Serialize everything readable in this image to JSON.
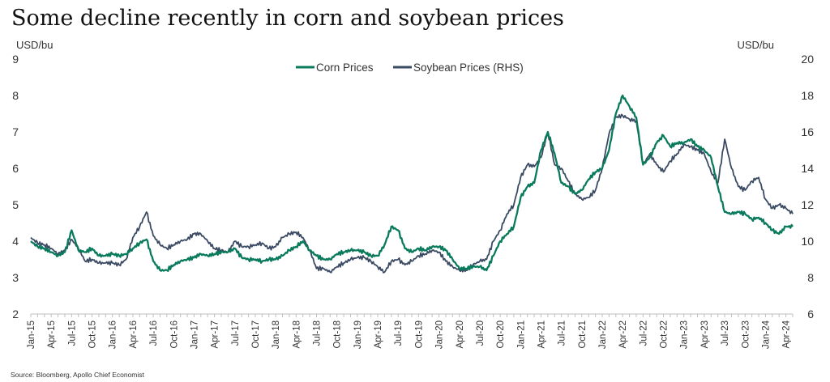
{
  "chart_data": {
    "type": "line",
    "title": "Some decline recently in corn and soybean prices",
    "y_left": {
      "unit": "USD/bu",
      "range": [
        2,
        9
      ],
      "ticks": [
        "2",
        "3",
        "4",
        "5",
        "6",
        "7",
        "8",
        "9"
      ]
    },
    "y_right": {
      "unit": "USD/bu",
      "range": [
        6,
        20
      ],
      "ticks": [
        "6",
        "8",
        "10",
        "12",
        "14",
        "16",
        "18",
        "20"
      ]
    },
    "x_tick_labels": [
      "Jan-15",
      "Apr-15",
      "Jul-15",
      "Oct-15",
      "Jan-16",
      "Apr-16",
      "Jul-16",
      "Oct-16",
      "Jan-17",
      "Apr-17",
      "Jul-17",
      "Oct-17",
      "Jan-18",
      "Apr-18",
      "Jul-18",
      "Oct-18",
      "Jan-19",
      "Apr-19",
      "Jul-19",
      "Oct-19",
      "Jan-20",
      "Apr-20",
      "Jul-20",
      "Oct-20",
      "Jan-21",
      "Apr-21",
      "Jul-21",
      "Oct-21",
      "Jan-22",
      "Apr-22",
      "Jul-22",
      "Oct-22",
      "Jan-23",
      "Apr-23",
      "Jul-23",
      "Oct-23",
      "Jan-24",
      "Apr-24"
    ],
    "x_range": [
      "2015-01",
      "2024-05"
    ],
    "grid": false,
    "legend_position": "top-center",
    "series": [
      {
        "name": "Corn Prices",
        "axis": "left",
        "color": "#0a7a5c",
        "x": [
          "2015-01",
          "2015-02",
          "2015-03",
          "2015-04",
          "2015-05",
          "2015-06",
          "2015-07",
          "2015-08",
          "2015-09",
          "2015-10",
          "2015-11",
          "2015-12",
          "2016-01",
          "2016-02",
          "2016-03",
          "2016-04",
          "2016-05",
          "2016-06",
          "2016-07",
          "2016-08",
          "2016-09",
          "2016-10",
          "2016-11",
          "2016-12",
          "2017-01",
          "2017-02",
          "2017-03",
          "2017-04",
          "2017-05",
          "2017-06",
          "2017-07",
          "2017-08",
          "2017-09",
          "2017-10",
          "2017-11",
          "2017-12",
          "2018-01",
          "2018-02",
          "2018-03",
          "2018-04",
          "2018-05",
          "2018-06",
          "2018-07",
          "2018-08",
          "2018-09",
          "2018-10",
          "2018-11",
          "2018-12",
          "2019-01",
          "2019-02",
          "2019-03",
          "2019-04",
          "2019-05",
          "2019-06",
          "2019-07",
          "2019-08",
          "2019-09",
          "2019-10",
          "2019-11",
          "2019-12",
          "2020-01",
          "2020-02",
          "2020-03",
          "2020-04",
          "2020-05",
          "2020-06",
          "2020-07",
          "2020-08",
          "2020-09",
          "2020-10",
          "2020-11",
          "2020-12",
          "2021-01",
          "2021-02",
          "2021-03",
          "2021-04",
          "2021-05",
          "2021-06",
          "2021-07",
          "2021-08",
          "2021-09",
          "2021-10",
          "2021-11",
          "2021-12",
          "2022-01",
          "2022-02",
          "2022-03",
          "2022-04",
          "2022-05",
          "2022-06",
          "2022-07",
          "2022-08",
          "2022-09",
          "2022-10",
          "2022-11",
          "2022-12",
          "2023-01",
          "2023-02",
          "2023-03",
          "2023-04",
          "2023-05",
          "2023-06",
          "2023-07",
          "2023-08",
          "2023-09",
          "2023-10",
          "2023-11",
          "2023-12",
          "2024-01",
          "2024-02",
          "2024-03",
          "2024-04",
          "2024-05"
        ],
        "values": [
          4.0,
          3.85,
          3.8,
          3.7,
          3.6,
          3.7,
          4.3,
          3.75,
          3.7,
          3.8,
          3.6,
          3.6,
          3.65,
          3.6,
          3.65,
          3.8,
          3.95,
          4.05,
          3.45,
          3.2,
          3.2,
          3.35,
          3.45,
          3.5,
          3.55,
          3.65,
          3.6,
          3.65,
          3.7,
          3.7,
          3.8,
          3.55,
          3.5,
          3.5,
          3.45,
          3.5,
          3.5,
          3.6,
          3.75,
          3.85,
          4.0,
          3.75,
          3.6,
          3.5,
          3.5,
          3.65,
          3.7,
          3.75,
          3.75,
          3.7,
          3.6,
          3.6,
          3.9,
          4.4,
          4.3,
          3.8,
          3.7,
          3.8,
          3.75,
          3.85,
          3.85,
          3.75,
          3.5,
          3.25,
          3.25,
          3.3,
          3.3,
          3.2,
          3.6,
          4.0,
          4.2,
          4.4,
          5.2,
          5.5,
          5.6,
          6.5,
          7.0,
          6.4,
          5.6,
          5.5,
          5.3,
          5.4,
          5.7,
          5.9,
          6.0,
          6.5,
          7.5,
          8.0,
          7.7,
          7.4,
          6.1,
          6.3,
          6.7,
          6.9,
          6.6,
          6.7,
          6.7,
          6.8,
          6.6,
          6.5,
          6.3,
          5.5,
          4.8,
          4.75,
          4.8,
          4.75,
          4.6,
          4.65,
          4.5,
          4.3,
          4.2,
          4.4,
          4.4
        ]
      },
      {
        "name": "Soybean Prices (RHS)",
        "axis": "right",
        "color": "#3b4a63",
        "x": [
          "2015-01",
          "2015-02",
          "2015-03",
          "2015-04",
          "2015-05",
          "2015-06",
          "2015-07",
          "2015-08",
          "2015-09",
          "2015-10",
          "2015-11",
          "2015-12",
          "2016-01",
          "2016-02",
          "2016-03",
          "2016-04",
          "2016-05",
          "2016-06",
          "2016-07",
          "2016-08",
          "2016-09",
          "2016-10",
          "2016-11",
          "2016-12",
          "2017-01",
          "2017-02",
          "2017-03",
          "2017-04",
          "2017-05",
          "2017-06",
          "2017-07",
          "2017-08",
          "2017-09",
          "2017-10",
          "2017-11",
          "2017-12",
          "2018-01",
          "2018-02",
          "2018-03",
          "2018-04",
          "2018-05",
          "2018-06",
          "2018-07",
          "2018-08",
          "2018-09",
          "2018-10",
          "2018-11",
          "2018-12",
          "2019-01",
          "2019-02",
          "2019-03",
          "2019-04",
          "2019-05",
          "2019-06",
          "2019-07",
          "2019-08",
          "2019-09",
          "2019-10",
          "2019-11",
          "2019-12",
          "2020-01",
          "2020-02",
          "2020-03",
          "2020-04",
          "2020-05",
          "2020-06",
          "2020-07",
          "2020-08",
          "2020-09",
          "2020-10",
          "2020-11",
          "2020-12",
          "2021-01",
          "2021-02",
          "2021-03",
          "2021-04",
          "2021-05",
          "2021-06",
          "2021-07",
          "2021-08",
          "2021-09",
          "2021-10",
          "2021-11",
          "2021-12",
          "2022-01",
          "2022-02",
          "2022-03",
          "2022-04",
          "2022-05",
          "2022-06",
          "2022-07",
          "2022-08",
          "2022-09",
          "2022-10",
          "2022-11",
          "2022-12",
          "2023-01",
          "2023-02",
          "2023-03",
          "2023-04",
          "2023-05",
          "2023-06",
          "2023-07",
          "2023-08",
          "2023-09",
          "2023-10",
          "2023-11",
          "2023-12",
          "2024-01",
          "2024-02",
          "2024-03",
          "2024-04",
          "2024-05"
        ],
        "values": [
          10.2,
          9.9,
          9.8,
          9.6,
          9.3,
          9.5,
          10.1,
          9.6,
          8.9,
          9.0,
          8.8,
          8.8,
          8.8,
          8.7,
          9.0,
          10.2,
          10.8,
          11.6,
          10.3,
          9.8,
          9.6,
          9.8,
          10.0,
          10.1,
          10.4,
          10.4,
          10.0,
          9.6,
          9.5,
          9.4,
          10.0,
          9.7,
          9.7,
          9.8,
          9.9,
          9.6,
          9.7,
          10.2,
          10.4,
          10.5,
          10.2,
          9.5,
          8.5,
          8.5,
          8.3,
          8.6,
          8.8,
          9.0,
          9.1,
          9.1,
          8.9,
          8.6,
          8.3,
          8.9,
          9.0,
          8.7,
          8.9,
          9.2,
          9.3,
          9.5,
          9.4,
          8.9,
          8.6,
          8.4,
          8.4,
          8.7,
          8.9,
          9.0,
          10.0,
          10.6,
          11.5,
          12.0,
          13.5,
          14.2,
          14.1,
          14.6,
          16.0,
          14.2,
          14.0,
          13.3,
          12.6,
          12.3,
          12.4,
          12.8,
          14.0,
          15.9,
          16.8,
          16.9,
          16.7,
          16.6,
          14.2,
          14.8,
          14.2,
          13.8,
          14.4,
          14.8,
          15.3,
          15.2,
          15.0,
          14.8,
          13.8,
          13.2,
          15.6,
          14.0,
          13.0,
          12.8,
          13.3,
          13.5,
          12.3,
          11.8,
          12.0,
          11.8,
          11.5
        ]
      }
    ]
  },
  "source": "Source: Bloomberg, Apollo Chief Economist"
}
